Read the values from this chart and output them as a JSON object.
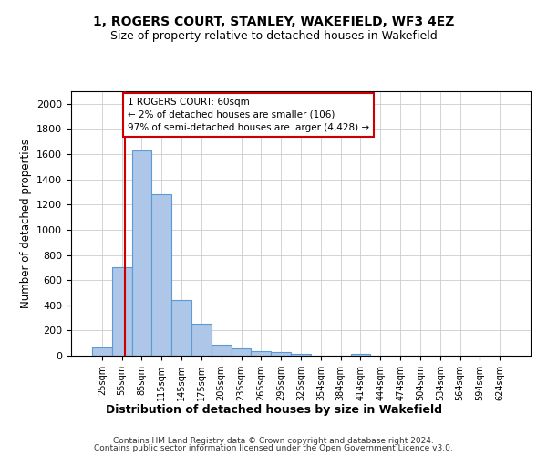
{
  "title1": "1, ROGERS COURT, STANLEY, WAKEFIELD, WF3 4EZ",
  "title2": "Size of property relative to detached houses in Wakefield",
  "xlabel": "Distribution of detached houses by size in Wakefield",
  "ylabel": "Number of detached properties",
  "bar_categories": [
    "25sqm",
    "55sqm",
    "85sqm",
    "115sqm",
    "145sqm",
    "175sqm",
    "205sqm",
    "235sqm",
    "265sqm",
    "295sqm",
    "325sqm",
    "354sqm",
    "384sqm",
    "414sqm",
    "444sqm",
    "474sqm",
    "504sqm",
    "534sqm",
    "564sqm",
    "594sqm",
    "624sqm"
  ],
  "bar_values": [
    65,
    700,
    1630,
    1285,
    445,
    255,
    90,
    55,
    35,
    28,
    18,
    0,
    0,
    18,
    0,
    0,
    0,
    0,
    0,
    0,
    0
  ],
  "bar_color": "#aec6e8",
  "bar_edge_color": "#5b9bd5",
  "ylim": [
    0,
    2100
  ],
  "yticks": [
    0,
    200,
    400,
    600,
    800,
    1000,
    1200,
    1400,
    1600,
    1800,
    2000
  ],
  "property_line_color": "#cc0000",
  "annotation_text": "1 ROGERS COURT: 60sqm\n← 2% of detached houses are smaller (106)\n97% of semi-detached houses are larger (4,428) →",
  "annotation_box_color": "#cc0000",
  "footer1": "Contains HM Land Registry data © Crown copyright and database right 2024.",
  "footer2": "Contains public sector information licensed under the Open Government Licence v3.0.",
  "grid_color": "#cccccc",
  "background_color": "#ffffff",
  "fig_width": 6.0,
  "fig_height": 5.0
}
